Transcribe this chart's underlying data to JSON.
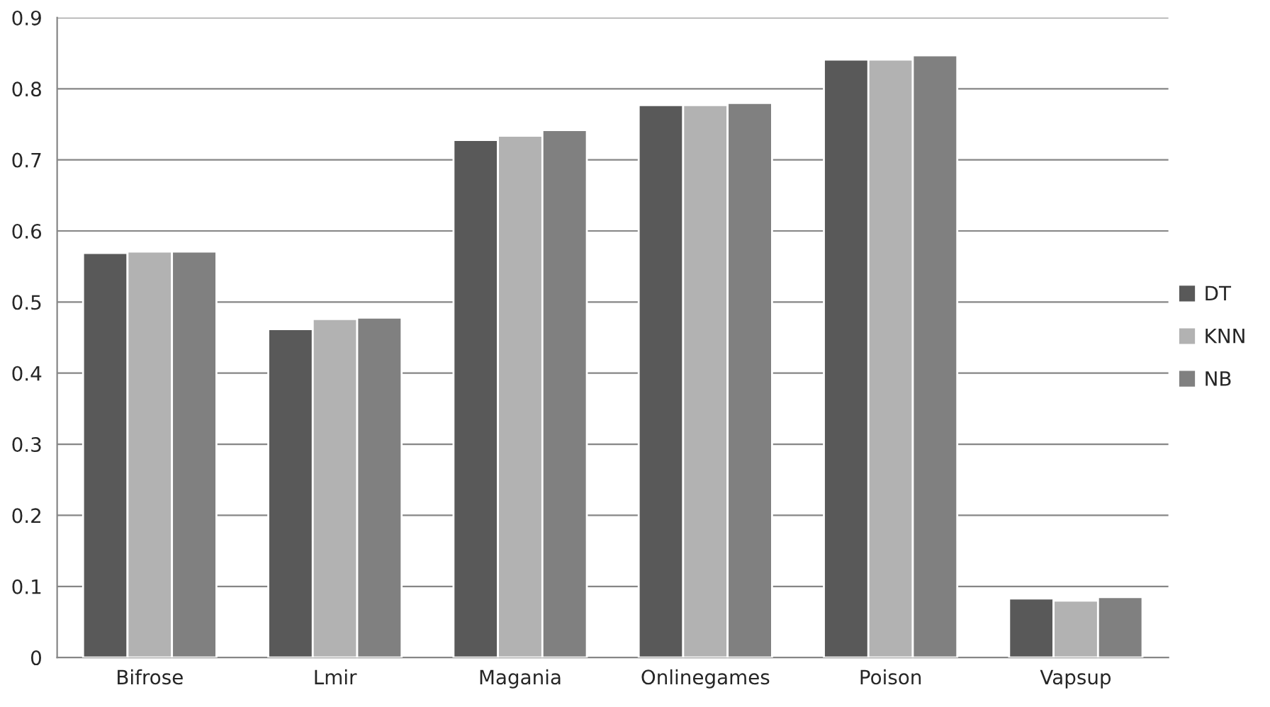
{
  "chart_data": {
    "type": "bar",
    "categories": [
      "Bifrose",
      "Lmir",
      "Magania",
      "Onlinegames",
      "Poison",
      "Vapsup"
    ],
    "series": [
      {
        "name": "DT",
        "color": "#595959",
        "values": [
          0.569,
          0.462,
          0.728,
          0.777,
          0.841,
          0.083
        ]
      },
      {
        "name": "KNN",
        "color": "#b2b2b2",
        "values": [
          0.571,
          0.476,
          0.734,
          0.777,
          0.841,
          0.08
        ]
      },
      {
        "name": "NB",
        "color": "#808080",
        "values": [
          0.571,
          0.478,
          0.742,
          0.78,
          0.847,
          0.085
        ]
      }
    ],
    "ylim": [
      0,
      0.9
    ],
    "yticks": [
      {
        "value": 0,
        "label": "0"
      },
      0.1,
      0.2,
      0.3,
      0.4,
      0.5,
      0.6,
      0.7,
      0.8,
      0.9
    ],
    "grid": "y",
    "legend": "right"
  }
}
